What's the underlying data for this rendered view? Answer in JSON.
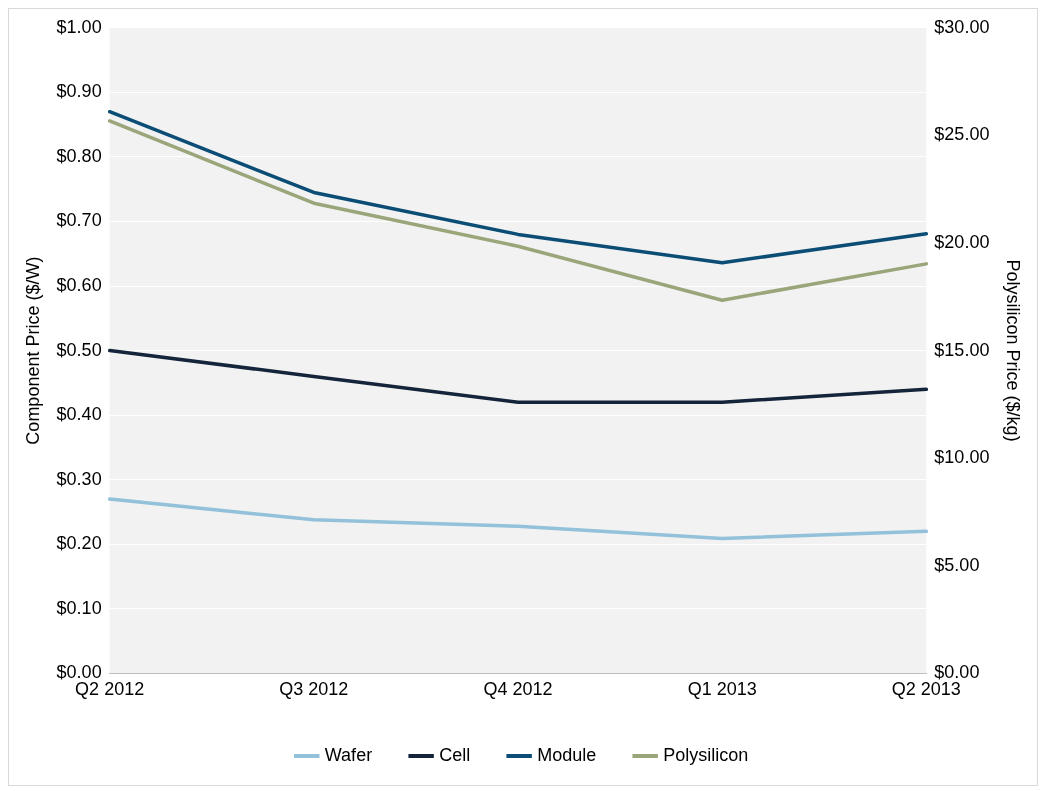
{
  "chart_data": {
    "type": "line",
    "xlabel": null,
    "ylabel": "Component Price ($/W)",
    "y2label": "Polysilicon Price ($/kg)",
    "categories": [
      "Q2 2012",
      "Q3 2012",
      "Q4 2012",
      "Q1 2013",
      "Q2 2013"
    ],
    "series": [
      {
        "name": "Wafer",
        "color": "#92c1d9",
        "values": [
          0.27,
          0.238,
          0.228,
          0.209,
          0.22
        ]
      },
      {
        "name": "Cell",
        "color": "#14243a",
        "values": [
          0.5,
          0.46,
          0.42,
          0.42,
          0.44
        ]
      },
      {
        "name": "Module",
        "color": "#0b4d75",
        "values": [
          0.87,
          0.745,
          0.68,
          0.636,
          0.681
        ]
      },
      {
        "name": "Polysilicon",
        "color": "#9aa57a",
        "axis": "y2",
        "values": [
          25.67,
          21.85,
          19.85,
          17.34,
          19.03
        ]
      }
    ],
    "ylim": [
      0,
      1
    ],
    "yticks": [
      {
        "value": 0,
        "label": "$0.00"
      },
      {
        "value": 0.1,
        "label": "$0.10"
      },
      {
        "value": 0.2,
        "label": "$0.20"
      },
      {
        "value": 0.3,
        "label": "$0.30"
      },
      {
        "value": 0.4,
        "label": "$0.40"
      },
      {
        "value": 0.5,
        "label": "$0.50"
      },
      {
        "value": 0.6,
        "label": "$0.60"
      },
      {
        "value": 0.7,
        "label": "$0.70"
      },
      {
        "value": 0.8,
        "label": "$0.80"
      },
      {
        "value": 0.9,
        "label": "$0.90"
      },
      {
        "value": 1,
        "label": "$1.00"
      }
    ],
    "y2lim": [
      0,
      30
    ],
    "y2ticks": [
      {
        "value": 0,
        "label": "$0.00"
      },
      {
        "value": 5,
        "label": "$5.00"
      },
      {
        "value": 10,
        "label": "$10.00"
      },
      {
        "value": 15,
        "label": "$15.00"
      },
      {
        "value": 20,
        "label": "$20.00"
      },
      {
        "value": 25,
        "label": "$25.00"
      },
      {
        "value": 30,
        "label": "$30.00"
      }
    ],
    "grid": "y",
    "legend": "bottom",
    "marker": "none",
    "line_style": "solid"
  }
}
